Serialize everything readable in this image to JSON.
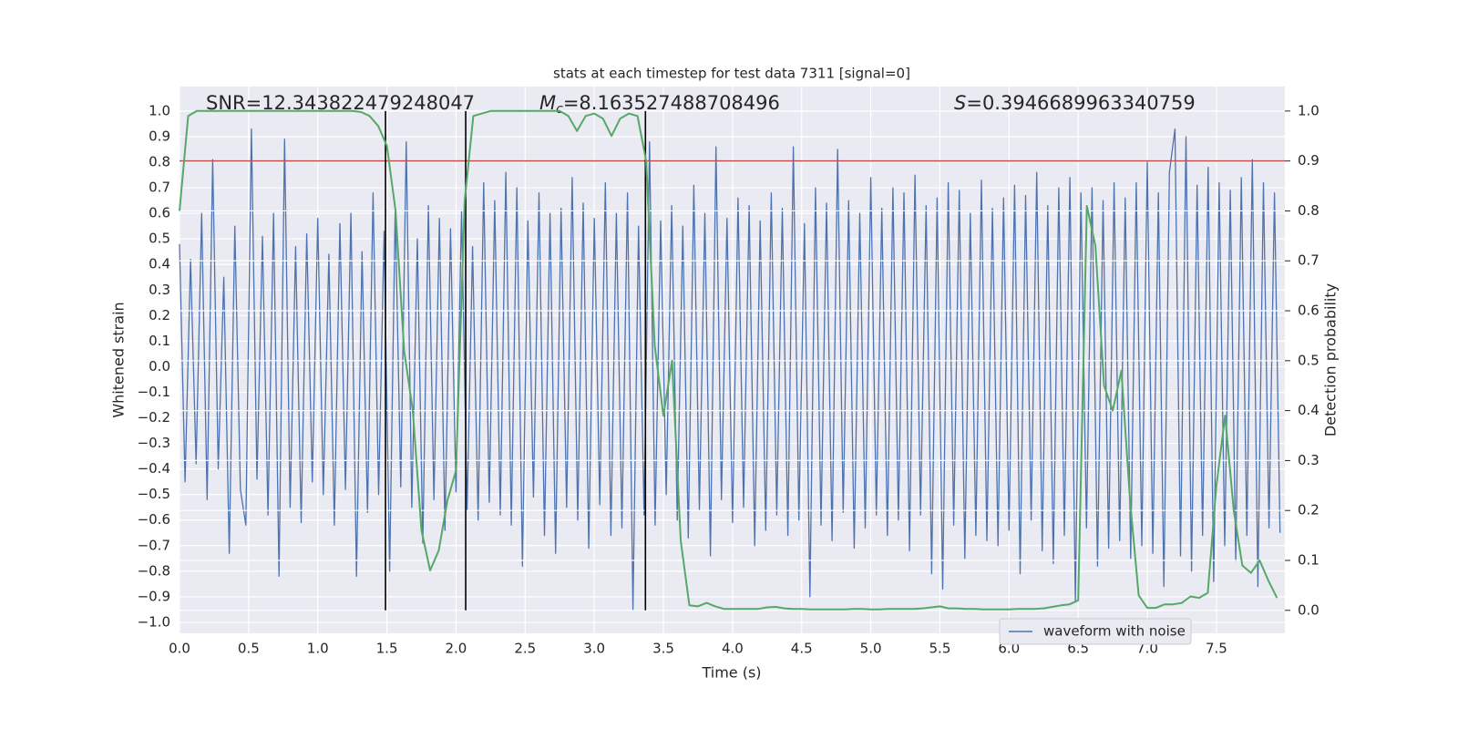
{
  "chart_data": {
    "type": "line",
    "title": "stats at each timestep for test data 7311 [signal=0]",
    "xlabel": "Time (s)",
    "ylabel": "Whitened strain",
    "y2label": "Detection probability",
    "annotations": [
      {
        "text": "SNR=12.343822479248047"
      },
      {
        "italic": "M",
        "sub": "c",
        "text": "=8.163527488708496"
      },
      {
        "italic": "S",
        "text": "=0.3946689963340759"
      }
    ],
    "xlim": [
      0,
      7.995
    ],
    "ylim": [
      -1.043,
      1.096
    ],
    "y2lim": [
      -0.046,
      1.049
    ],
    "xticks": [
      {
        "value": 0,
        "label": "0.0"
      },
      0.5,
      {
        "value": 1,
        "label": "1.0"
      },
      1.5,
      {
        "value": 2,
        "label": "2.0"
      },
      2.5,
      {
        "value": 3,
        "label": "3.0"
      },
      3.5,
      {
        "value": 4,
        "label": "4.0"
      },
      4.5,
      {
        "value": 5,
        "label": "5.0"
      },
      5.5,
      {
        "value": 6,
        "label": "6.0"
      },
      6.5,
      {
        "value": 7,
        "label": "7.0"
      },
      7.5
    ],
    "yticks": [
      {
        "value": -1,
        "label": "−1.0"
      },
      {
        "value": -0.9,
        "label": "−0.9"
      },
      {
        "value": -0.8,
        "label": "−0.8"
      },
      {
        "value": -0.7,
        "label": "−0.7"
      },
      {
        "value": -0.6,
        "label": "−0.6"
      },
      {
        "value": -0.5,
        "label": "−0.5"
      },
      {
        "value": -0.4,
        "label": "−0.4"
      },
      {
        "value": -0.3,
        "label": "−0.3"
      },
      {
        "value": -0.2,
        "label": "−0.2"
      },
      {
        "value": -0.1,
        "label": "−0.1"
      },
      {
        "value": 0,
        "label": "0.0"
      },
      0.1,
      0.2,
      0.3,
      0.4,
      0.5,
      0.6,
      0.7,
      0.8,
      0.9,
      {
        "value": 1,
        "label": "1.0"
      }
    ],
    "y2ticks": [
      {
        "value": 0,
        "label": "0.0"
      },
      0.1,
      0.2,
      0.3,
      0.4,
      0.5,
      0.6,
      0.7,
      0.8,
      0.9,
      {
        "value": 1,
        "label": "1.0"
      }
    ],
    "grid": true,
    "legend": "lower right",
    "hline": {
      "y2": 0.9,
      "color": "#c44e52"
    },
    "vlines": {
      "x": [
        1.49,
        2.07,
        3.37
      ],
      "y2": [
        0,
        1
      ],
      "color": "#000000"
    },
    "series": [
      {
        "name": "waveform with noise",
        "color": "#4c72b0",
        "x": [
          0,
          0.04,
          0.08,
          0.12,
          0.16,
          0.2,
          0.24,
          0.28,
          0.32,
          0.36,
          0.4,
          0.44,
          0.48,
          0.52,
          0.56,
          0.6,
          0.64,
          0.68,
          0.72,
          0.76,
          0.8,
          0.84,
          0.88,
          0.92,
          0.96,
          1,
          1.04,
          1.08,
          1.12,
          1.16,
          1.2,
          1.24,
          1.28,
          1.32,
          1.36,
          1.4,
          1.44,
          1.48,
          1.52,
          1.56,
          1.6,
          1.64,
          1.68,
          1.72,
          1.76,
          1.8,
          1.84,
          1.88,
          1.92,
          1.96,
          2,
          2.04,
          2.08,
          2.12,
          2.16,
          2.2,
          2.24,
          2.28,
          2.32,
          2.36,
          2.4,
          2.44,
          2.48,
          2.52,
          2.56,
          2.6,
          2.64,
          2.68,
          2.72,
          2.76,
          2.8,
          2.84,
          2.88,
          2.92,
          2.96,
          3,
          3.04,
          3.08,
          3.12,
          3.16,
          3.2,
          3.24,
          3.28,
          3.32,
          3.36,
          3.4,
          3.44,
          3.48,
          3.52,
          3.56,
          3.6,
          3.64,
          3.68,
          3.72,
          3.76,
          3.8,
          3.84,
          3.88,
          3.92,
          3.96,
          4,
          4.04,
          4.08,
          4.12,
          4.16,
          4.2,
          4.24,
          4.28,
          4.32,
          4.36,
          4.4,
          4.44,
          4.48,
          4.52,
          4.56,
          4.6,
          4.64,
          4.68,
          4.72,
          4.76,
          4.8,
          4.84,
          4.88,
          4.92,
          4.96,
          5,
          5.04,
          5.08,
          5.12,
          5.16,
          5.2,
          5.24,
          5.28,
          5.32,
          5.36,
          5.4,
          5.44,
          5.48,
          5.52,
          5.56,
          5.6,
          5.64,
          5.68,
          5.72,
          5.76,
          5.8,
          5.84,
          5.88,
          5.92,
          5.96,
          6,
          6.04,
          6.08,
          6.12,
          6.16,
          6.2,
          6.24,
          6.28,
          6.32,
          6.36,
          6.4,
          6.44,
          6.48,
          6.52,
          6.56,
          6.6,
          6.64,
          6.68,
          6.72,
          6.76,
          6.8,
          6.84,
          6.88,
          6.92,
          6.96,
          7,
          7.04,
          7.08,
          7.12,
          7.16,
          7.2,
          7.24,
          7.28,
          7.32,
          7.36,
          7.4,
          7.44,
          7.48,
          7.52,
          7.56,
          7.6,
          7.64,
          7.68,
          7.72,
          7.76,
          7.8,
          7.84,
          7.88,
          7.92,
          7.96
        ],
        "values": [
          0.48,
          -0.45,
          0.42,
          -0.38,
          0.6,
          -0.52,
          0.81,
          -0.4,
          0.35,
          -0.73,
          0.55,
          -0.48,
          -0.62,
          0.93,
          -0.44,
          0.51,
          -0.58,
          0.6,
          -0.82,
          0.89,
          -0.55,
          0.47,
          -0.61,
          0.52,
          -0.45,
          0.58,
          -0.5,
          0.44,
          -0.62,
          0.56,
          -0.48,
          0.6,
          -0.82,
          0.45,
          -0.57,
          0.68,
          -0.5,
          0.53,
          -0.8,
          0.62,
          -0.47,
          0.88,
          -0.55,
          0.5,
          -0.69,
          0.63,
          -0.52,
          0.58,
          -0.64,
          0.54,
          -0.49,
          0.61,
          -0.56,
          0.47,
          -0.6,
          0.72,
          -0.53,
          0.65,
          -0.58,
          0.76,
          -0.62,
          0.7,
          -0.78,
          0.57,
          -0.51,
          0.68,
          -0.66,
          0.6,
          -0.73,
          0.62,
          -0.55,
          0.74,
          -0.6,
          0.64,
          -0.71,
          0.58,
          -0.54,
          0.72,
          -0.66,
          0.6,
          -0.63,
          0.68,
          -0.95,
          0.55,
          -0.58,
          0.88,
          -0.62,
          0.57,
          -0.5,
          0.63,
          -0.6,
          0.55,
          -0.67,
          0.71,
          -0.56,
          0.6,
          -0.74,
          0.86,
          -0.52,
          0.58,
          -0.61,
          0.66,
          -0.55,
          0.63,
          -0.7,
          0.57,
          -0.64,
          0.68,
          -0.58,
          0.62,
          -0.66,
          0.86,
          -0.6,
          0.56,
          -0.9,
          0.7,
          -0.62,
          0.64,
          -0.68,
          0.85,
          -0.57,
          0.65,
          -0.71,
          0.6,
          -0.63,
          0.74,
          -0.58,
          0.62,
          -0.66,
          0.7,
          -0.6,
          0.68,
          -0.72,
          0.75,
          -0.58,
          0.63,
          -0.81,
          0.66,
          -0.87,
          0.72,
          -0.62,
          0.69,
          -0.75,
          0.6,
          -0.66,
          0.73,
          -0.68,
          0.62,
          -0.7,
          0.66,
          -0.64,
          0.71,
          -0.81,
          0.67,
          -0.6,
          0.76,
          -0.72,
          0.63,
          -0.77,
          0.7,
          -0.66,
          0.74,
          -0.92,
          0.68,
          -0.63,
          0.7,
          -0.78,
          0.65,
          -0.71,
          0.72,
          -0.68,
          0.66,
          -0.75,
          0.72,
          -0.7,
          0.8,
          -0.73,
          0.68,
          -0.86,
          0.76,
          0.93,
          -0.74,
          0.9,
          -0.8,
          0.71,
          -0.66,
          0.78,
          -0.84,
          0.72,
          -0.7,
          0.69,
          -0.76,
          0.74,
          -0.66,
          0.81,
          -0.86,
          0.72,
          -0.63,
          0.68,
          -0.65
        ]
      },
      {
        "axis": "y2",
        "color": "#55a868",
        "x": [
          0,
          0.0625,
          0.125,
          0.1875,
          0.25,
          0.3125,
          0.375,
          0.4375,
          0.5,
          0.5625,
          0.625,
          0.6875,
          0.75,
          0.8125,
          0.875,
          0.9375,
          1,
          1.0625,
          1.125,
          1.1875,
          1.25,
          1.3125,
          1.375,
          1.4375,
          1.5,
          1.5625,
          1.625,
          1.6875,
          1.75,
          1.8125,
          1.875,
          1.9375,
          2,
          2.0625,
          2.125,
          2.1875,
          2.25,
          2.3125,
          2.375,
          2.4375,
          2.5,
          2.5625,
          2.625,
          2.6875,
          2.75,
          2.8125,
          2.875,
          2.9375,
          3,
          3.0625,
          3.125,
          3.1875,
          3.25,
          3.3125,
          3.375,
          3.4375,
          3.5,
          3.5625,
          3.625,
          3.6875,
          3.75,
          3.8125,
          3.875,
          3.9375,
          4,
          4.0625,
          4.125,
          4.1875,
          4.25,
          4.3125,
          4.375,
          4.4375,
          4.5,
          4.5625,
          4.625,
          4.6875,
          4.75,
          4.8125,
          4.875,
          4.9375,
          5,
          5.0625,
          5.125,
          5.1875,
          5.25,
          5.3125,
          5.375,
          5.4375,
          5.5,
          5.5625,
          5.625,
          5.6875,
          5.75,
          5.8125,
          5.875,
          5.9375,
          6,
          6.0625,
          6.125,
          6.1875,
          6.25,
          6.3125,
          6.375,
          6.4375,
          6.5,
          6.5625,
          6.625,
          6.6875,
          6.75,
          6.8125,
          6.875,
          6.9375,
          7,
          7.0625,
          7.125,
          7.1875,
          7.25,
          7.3125,
          7.375,
          7.4375,
          7.5,
          7.5625,
          7.625,
          7.6875,
          7.75,
          7.8125,
          7.875,
          7.9375
        ],
        "values": [
          0.8,
          0.99,
          1,
          1,
          1,
          1,
          1,
          1,
          1,
          1,
          1,
          1,
          1,
          1,
          1,
          1,
          1,
          1,
          1,
          1,
          1,
          0.998,
          0.99,
          0.97,
          0.93,
          0.8,
          0.52,
          0.4,
          0.16,
          0.08,
          0.12,
          0.22,
          0.28,
          0.82,
          0.99,
          0.995,
          1,
          1,
          1,
          1,
          1,
          1,
          1,
          1,
          1,
          0.99,
          0.96,
          0.99,
          0.995,
          0.985,
          0.95,
          0.985,
          0.995,
          0.99,
          0.9,
          0.53,
          0.39,
          0.5,
          0.14,
          0.01,
          0.008,
          0.015,
          0.008,
          0.003,
          0.003,
          0.003,
          0.003,
          0.003,
          0.006,
          0.007,
          0.004,
          0.003,
          0.003,
          0.002,
          0.002,
          0.002,
          0.002,
          0.002,
          0.003,
          0.003,
          0.002,
          0.002,
          0.003,
          0.003,
          0.003,
          0.003,
          0.004,
          0.006,
          0.008,
          0.004,
          0.004,
          0.003,
          0.003,
          0.002,
          0.002,
          0.002,
          0.002,
          0.003,
          0.003,
          0.003,
          0.004,
          0.007,
          0.01,
          0.012,
          0.02,
          0.81,
          0.73,
          0.45,
          0.4,
          0.48,
          0.22,
          0.03,
          0.005,
          0.005,
          0.012,
          0.012,
          0.015,
          0.028,
          0.025,
          0.035,
          0.25,
          0.39,
          0.2,
          0.09,
          0.075,
          0.1,
          0.06,
          0.025
        ]
      }
    ]
  }
}
